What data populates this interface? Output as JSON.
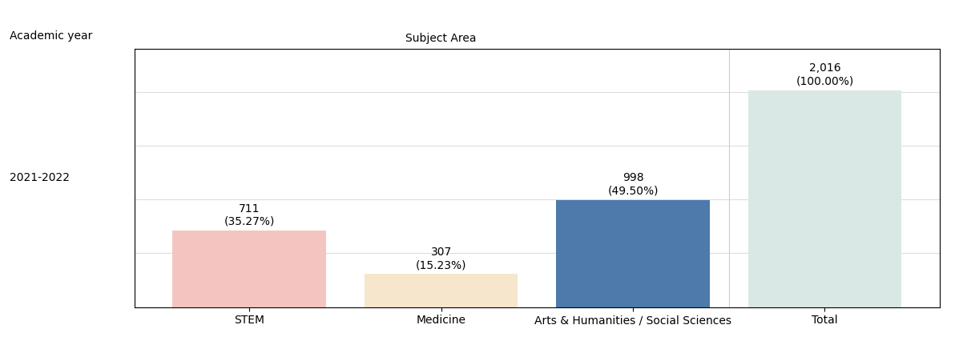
{
  "chart_data": {
    "type": "bar",
    "categories": [
      "STEM",
      "Medicine",
      "Arts & Humanities / Social Sciences",
      "Total"
    ],
    "values": [
      711,
      307,
      998,
      2016
    ],
    "value_labels": [
      "711\n(35.27%)",
      "307\n(15.23%)",
      "998\n(49.50%)",
      "2,016\n(100.00%)"
    ],
    "data_labels": true,
    "colors": [
      "#f4c5c0",
      "#f5e6cc",
      "#4d7aab",
      "#d9e8e5"
    ],
    "annotations": [
      "Academic year",
      "2021-2022",
      "Subject Area"
    ],
    "ylim": [
      0,
      2400
    ],
    "yticks": [
      500,
      1000,
      1500,
      2000
    ],
    "grid": true,
    "tick_labels": "x"
  }
}
